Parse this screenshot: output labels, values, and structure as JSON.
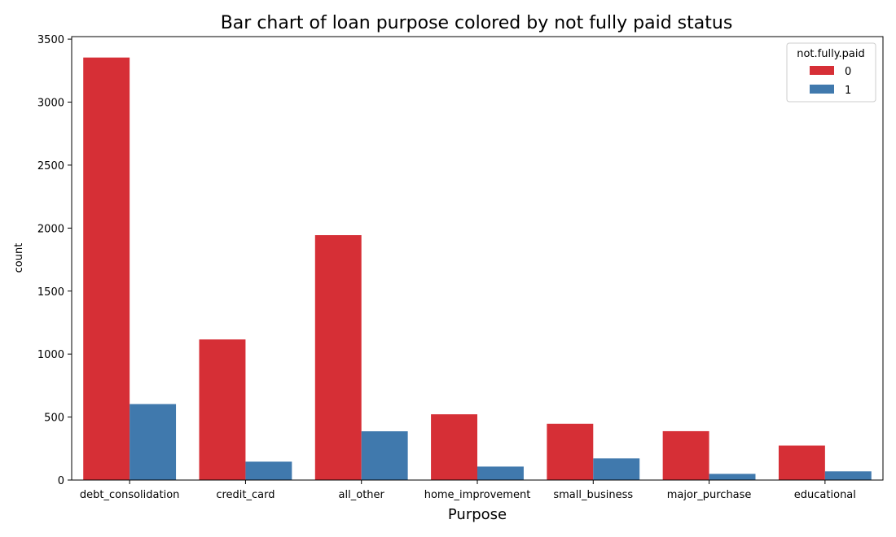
{
  "chart_data": {
    "type": "bar",
    "title": "Bar chart of loan purpose colored by not fully paid status",
    "xlabel": "Purpose",
    "ylabel": "count",
    "categories": [
      "debt_consolidation",
      "credit_card",
      "all_other",
      "home_improvement",
      "small_business",
      "major_purchase",
      "educational"
    ],
    "series": [
      {
        "name": "0",
        "color": "#d62f36",
        "values": [
          3354,
          1116,
          1944,
          522,
          447,
          388,
          274
        ]
      },
      {
        "name": "1",
        "color": "#4079ad",
        "values": [
          603,
          146,
          387,
          107,
          172,
          49,
          69
        ]
      }
    ],
    "legend": {
      "title": "not.fully.paid",
      "position": "top-right"
    },
    "ylim": [
      0,
      3520
    ],
    "yticks": [
      0,
      500,
      1000,
      1500,
      2000,
      2500,
      3000,
      3500
    ],
    "grid": false
  }
}
